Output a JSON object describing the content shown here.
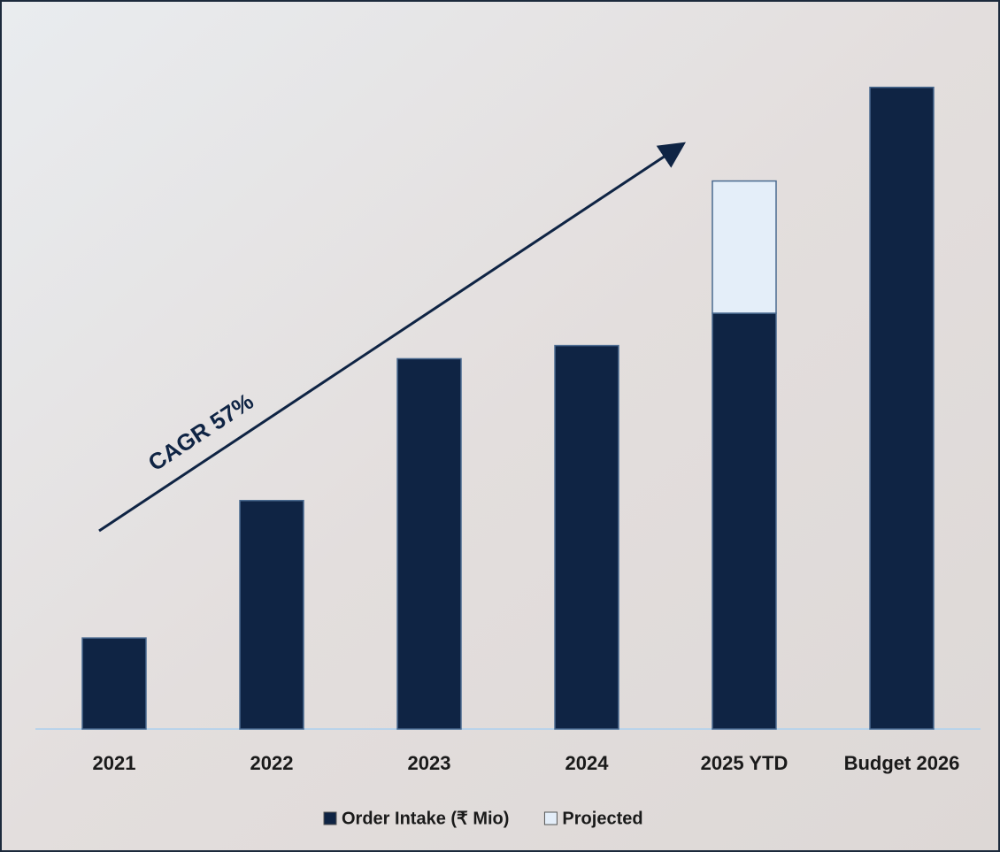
{
  "chart_data": {
    "type": "bar",
    "stacked": true,
    "annotations": [
      "CAGR 57%"
    ],
    "categories": [
      "2021",
      "2022",
      "2023",
      "2024",
      "2025 YTD",
      "Budget 2026"
    ],
    "series": [
      {
        "name": "Order Intake (₹ Mio)",
        "color": "#0f2444",
        "values": [
          104,
          261,
          423,
          438,
          475,
          733
        ]
      },
      {
        "name": "Projected",
        "color": "#e4eef9",
        "values": [
          null,
          null,
          null,
          null,
          151,
          null
        ]
      }
    ],
    "ylim": [
      0,
      760
    ]
  }
}
